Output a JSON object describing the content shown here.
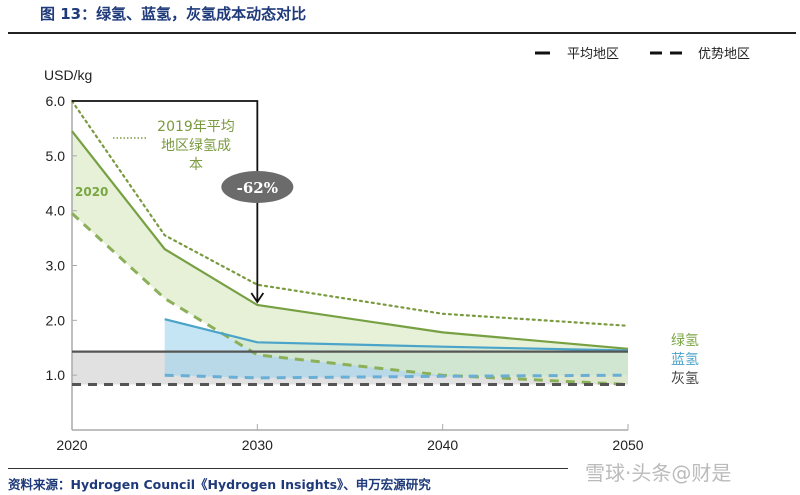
{
  "header": {
    "title": "图 13：绿氢、蓝氢，灰氢成本动态对比"
  },
  "footer": {
    "source": "资料来源：Hydrogen Council《Hydrogen Insights》、申万宏源研究",
    "watermark": "雪球·头条@财是"
  },
  "chart_data": {
    "type": "line",
    "title": "图 13：绿氢、蓝氢，灰氢成本动态对比",
    "ylabel": "USD/kg",
    "xlabel": "",
    "xlim": [
      2020,
      2050
    ],
    "ylim": [
      0,
      6.0
    ],
    "xticks": [
      "2020",
      "2030",
      "2040",
      "2050"
    ],
    "yticks": [
      "1.0",
      "2.0",
      "3.0",
      "4.0",
      "5.0",
      "6.0"
    ],
    "legend": {
      "placement": "top-right",
      "entries": [
        {
          "label": "平均地区",
          "style": "solid"
        },
        {
          "label": "优势地区",
          "style": "dashed"
        }
      ]
    },
    "series": [
      {
        "name": "2019年平均地区绿氢成本",
        "style": "dotted",
        "color": "#7a9a3f",
        "x": [
          2020,
          2025,
          2030,
          2040,
          2050
        ],
        "values": [
          6.0,
          3.55,
          2.65,
          2.12,
          1.9
        ]
      },
      {
        "name": "绿氢-平均地区",
        "style": "solid",
        "color": "#77a043",
        "x": [
          2020,
          2025,
          2030,
          2040,
          2050
        ],
        "values": [
          5.45,
          3.3,
          2.28,
          1.78,
          1.48
        ]
      },
      {
        "name": "绿氢-优势地区",
        "style": "dashed",
        "color": "#8cb05a",
        "x": [
          2020,
          2025,
          2030,
          2040,
          2050
        ],
        "values": [
          3.95,
          2.4,
          1.37,
          1.0,
          0.83
        ]
      },
      {
        "name": "蓝氢-平均地区",
        "style": "solid",
        "color": "#4aa3c8",
        "x": [
          2025,
          2030,
          2040,
          2050
        ],
        "values": [
          2.02,
          1.6,
          1.52,
          1.45
        ]
      },
      {
        "name": "蓝氢-优势地区",
        "style": "dashed",
        "color": "#6aaed6",
        "x": [
          2025,
          2030,
          2040,
          2050
        ],
        "values": [
          1.0,
          0.95,
          0.98,
          1.0
        ]
      },
      {
        "name": "灰氢-平均地区",
        "style": "solid",
        "color": "#555555",
        "x": [
          2020,
          2050
        ],
        "values": [
          1.43,
          1.43
        ]
      },
      {
        "name": "灰氢-优势地区",
        "style": "dashed",
        "color": "#555555",
        "x": [
          2020,
          2050
        ],
        "values": [
          0.83,
          0.83
        ]
      }
    ],
    "annotations": [
      {
        "text": "2019年平均地区绿氢成本",
        "color": "#7a9a3f"
      },
      {
        "text": "2020",
        "color": "#7aa644"
      },
      {
        "text": "-62%",
        "from": [
          2020,
          6.0
        ],
        "to": [
          2030,
          2.28
        ]
      }
    ],
    "series_labels": [
      {
        "text": "绿氢",
        "color": "#7aa644"
      },
      {
        "text": "蓝氢",
        "color": "#4aa3c8"
      },
      {
        "text": "灰氢",
        "color": "#444444"
      }
    ]
  }
}
